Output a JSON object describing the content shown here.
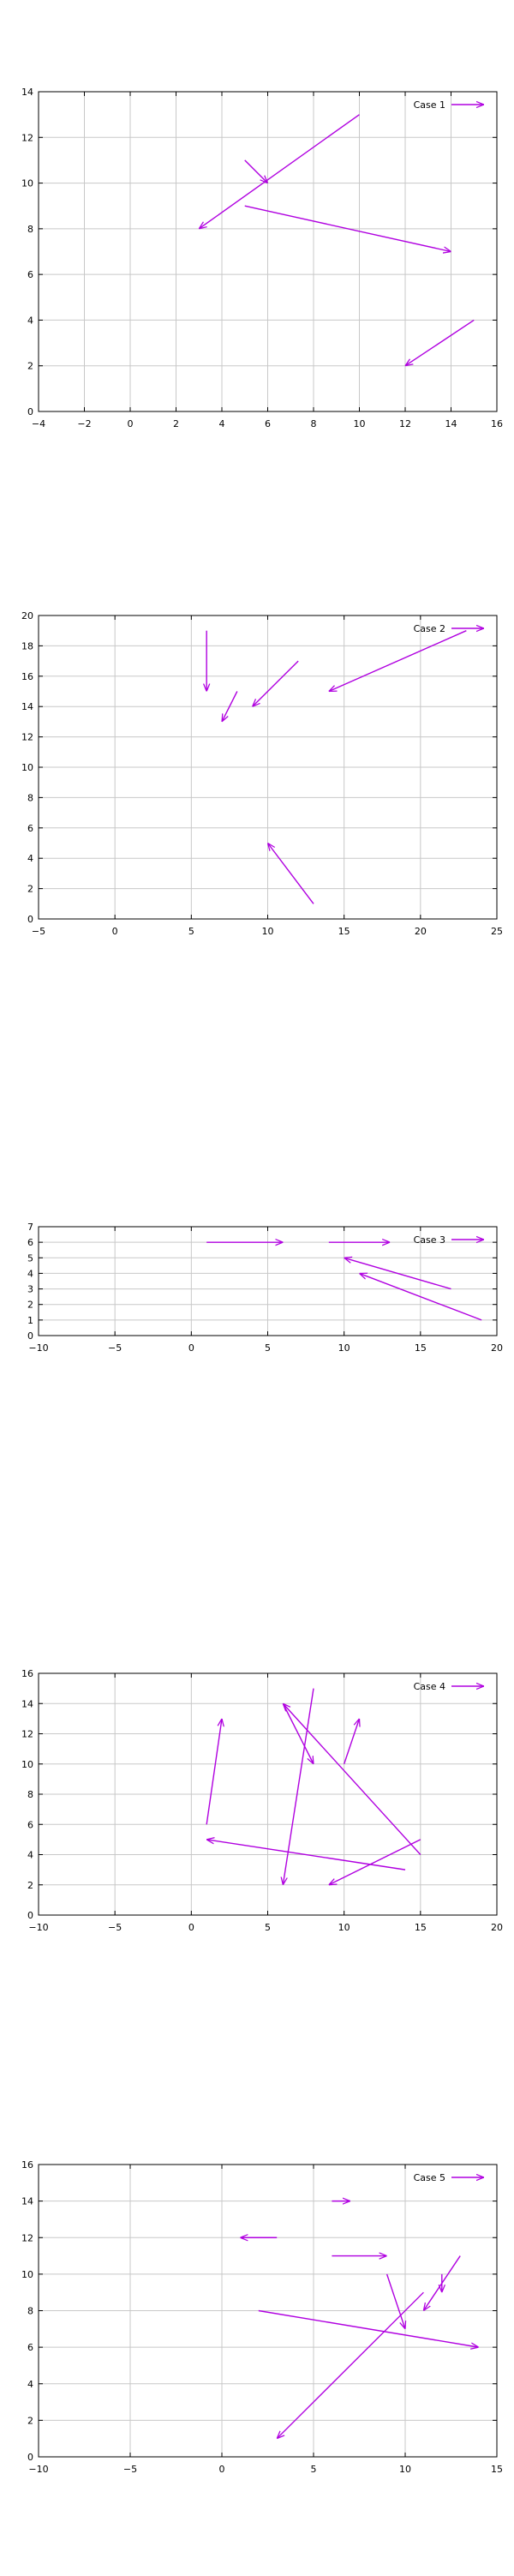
{
  "colors": {
    "arrow": "#b000e0",
    "grid": "#c8c8c8",
    "axis": "#000000",
    "background": "#ffffff"
  },
  "chart_data": [
    {
      "type": "vector",
      "title": "",
      "legend": "Case 1",
      "legend_position": "top-right",
      "xlim": [
        -4,
        16
      ],
      "ylim": [
        0,
        14
      ],
      "xticks": [
        -4,
        -2,
        0,
        2,
        4,
        6,
        8,
        10,
        12,
        14,
        16
      ],
      "yticks": [
        0,
        2,
        4,
        6,
        8,
        10,
        12,
        14
      ],
      "grid": true,
      "arrows": [
        {
          "x0": 10,
          "y0": 13,
          "x1": 3,
          "y1": 8
        },
        {
          "x0": 5,
          "y0": 11,
          "x1": 6,
          "y1": 10
        },
        {
          "x0": 5,
          "y0": 9,
          "x1": 14,
          "y1": 7
        },
        {
          "x0": 15,
          "y0": 4,
          "x1": 12,
          "y1": 2
        }
      ]
    },
    {
      "type": "vector",
      "title": "",
      "legend": "Case 2",
      "legend_position": "top-right",
      "xlim": [
        -5,
        25
      ],
      "ylim": [
        0,
        20
      ],
      "xticks": [
        -5,
        0,
        5,
        10,
        15,
        20,
        25
      ],
      "yticks": [
        0,
        2,
        4,
        6,
        8,
        10,
        12,
        14,
        16,
        18,
        20
      ],
      "grid": true,
      "arrows": [
        {
          "x0": 6,
          "y0": 19,
          "x1": 6,
          "y1": 15
        },
        {
          "x0": 8,
          "y0": 15,
          "x1": 7,
          "y1": 13
        },
        {
          "x0": 12,
          "y0": 17,
          "x1": 9,
          "y1": 14
        },
        {
          "x0": 23,
          "y0": 19,
          "x1": 14,
          "y1": 15
        },
        {
          "x0": 13,
          "y0": 1,
          "x1": 10,
          "y1": 5
        }
      ]
    },
    {
      "type": "vector",
      "title": "",
      "legend": "Case 3",
      "legend_position": "top-right",
      "xlim": [
        -10,
        20
      ],
      "ylim": [
        0,
        7
      ],
      "xticks": [
        -10,
        -5,
        0,
        5,
        10,
        15,
        20
      ],
      "yticks": [
        0,
        1,
        2,
        3,
        4,
        5,
        6,
        7
      ],
      "grid": true,
      "arrows": [
        {
          "x0": 1,
          "y0": 6,
          "x1": 6,
          "y1": 6
        },
        {
          "x0": 9,
          "y0": 6,
          "x1": 13,
          "y1": 6
        },
        {
          "x0": 17,
          "y0": 3,
          "x1": 10,
          "y1": 5
        },
        {
          "x0": 19,
          "y0": 1,
          "x1": 11,
          "y1": 4
        }
      ]
    },
    {
      "type": "vector",
      "title": "",
      "legend": "Case 4",
      "legend_position": "top-right",
      "xlim": [
        -10,
        20
      ],
      "ylim": [
        0,
        16
      ],
      "xticks": [
        -10,
        -5,
        0,
        5,
        10,
        15,
        20
      ],
      "yticks": [
        0,
        2,
        4,
        6,
        8,
        10,
        12,
        14,
        16
      ],
      "grid": true,
      "arrows": [
        {
          "x0": 1,
          "y0": 6,
          "x1": 2,
          "y1": 13
        },
        {
          "x0": 8,
          "y0": 15,
          "x1": 6,
          "y1": 2
        },
        {
          "x0": 6,
          "y0": 14,
          "x1": 8,
          "y1": 10
        },
        {
          "x0": 15,
          "y0": 4,
          "x1": 6,
          "y1": 14
        },
        {
          "x0": 10,
          "y0": 10,
          "x1": 11,
          "y1": 13
        },
        {
          "x0": 14,
          "y0": 3,
          "x1": 1,
          "y1": 5
        },
        {
          "x0": 15,
          "y0": 5,
          "x1": 9,
          "y1": 2
        }
      ]
    },
    {
      "type": "vector",
      "title": "",
      "legend": "Case 5",
      "legend_position": "top-right",
      "xlim": [
        -10,
        15
      ],
      "ylim": [
        0,
        16
      ],
      "xticks": [
        -10,
        -5,
        0,
        5,
        10,
        15
      ],
      "yticks": [
        0,
        2,
        4,
        6,
        8,
        10,
        12,
        14,
        16
      ],
      "grid": true,
      "arrows": [
        {
          "x0": 6,
          "y0": 14,
          "x1": 7,
          "y1": 14
        },
        {
          "x0": 3,
          "y0": 12,
          "x1": 1,
          "y1": 12
        },
        {
          "x0": 6,
          "y0": 11,
          "x1": 9,
          "y1": 11
        },
        {
          "x0": 9,
          "y0": 10,
          "x1": 10,
          "y1": 7
        },
        {
          "x0": 13,
          "y0": 11,
          "x1": 11,
          "y1": 8
        },
        {
          "x0": 12,
          "y0": 10,
          "x1": 12,
          "y1": 9
        },
        {
          "x0": 2,
          "y0": 8,
          "x1": 14,
          "y1": 6
        },
        {
          "x0": 11,
          "y0": 9,
          "x1": 3,
          "y1": 1
        }
      ]
    }
  ]
}
